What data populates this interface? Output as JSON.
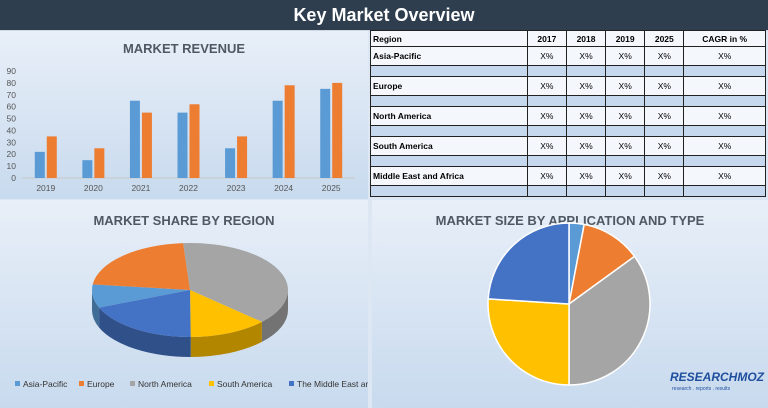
{
  "header": {
    "title": "Key Market Overview"
  },
  "chart_data": [
    {
      "type": "bar",
      "title": "MARKET REVENUE",
      "categories": [
        "2019",
        "2020",
        "2021",
        "2022",
        "2023",
        "2024",
        "2025"
      ],
      "series": [
        {
          "values": [
            22,
            15,
            65,
            55,
            25,
            65,
            75
          ],
          "color": "#5b9bd5"
        },
        {
          "values": [
            35,
            25,
            55,
            62,
            35,
            78,
            80
          ],
          "color": "#ed7d31"
        }
      ],
      "ylim": [
        0,
        90
      ],
      "yticks": [
        0,
        10,
        20,
        30,
        40,
        50,
        60,
        70,
        80,
        90
      ],
      "grid": false
    },
    {
      "type": "table",
      "columns": [
        "Region",
        "2017",
        "2018",
        "2019",
        "2025",
        "CAGR in %"
      ],
      "rows": [
        [
          "Asia-Pacific",
          "X%",
          "X%",
          "X%",
          "X%",
          "X%"
        ],
        [
          "Europe",
          "X%",
          "X%",
          "X%",
          "X%",
          "X%"
        ],
        [
          "North America",
          "X%",
          "X%",
          "X%",
          "X%",
          "X%"
        ],
        [
          "South America",
          "X%",
          "X%",
          "X%",
          "X%",
          "X%"
        ],
        [
          "Middle East and Africa",
          "X%",
          "X%",
          "X%",
          "X%",
          "X%"
        ]
      ]
    },
    {
      "type": "pie",
      "title": "MARKET SHARE BY REGION",
      "labels": [
        "Asia-Pacific",
        "Europe",
        "North America",
        "South America",
        "The Middle East and Africa"
      ],
      "values": [
        8,
        22,
        38,
        13,
        19
      ],
      "colors": [
        "#5b9bd5",
        "#ed7d31",
        "#a5a5a5",
        "#ffc000",
        "#4472c4"
      ],
      "legend": "bottom"
    },
    {
      "type": "pie",
      "title": "MARKET SIZE BY APPLICATION AND TYPE",
      "values": [
        3,
        12,
        35,
        26,
        24
      ],
      "colors": [
        "#5b9bd5",
        "#ed7d31",
        "#a5a5a5",
        "#ffc000",
        "#4472c4"
      ]
    }
  ],
  "logo": {
    "text": "RESEARCHMOZ",
    "tagline": "research . reports . results"
  }
}
